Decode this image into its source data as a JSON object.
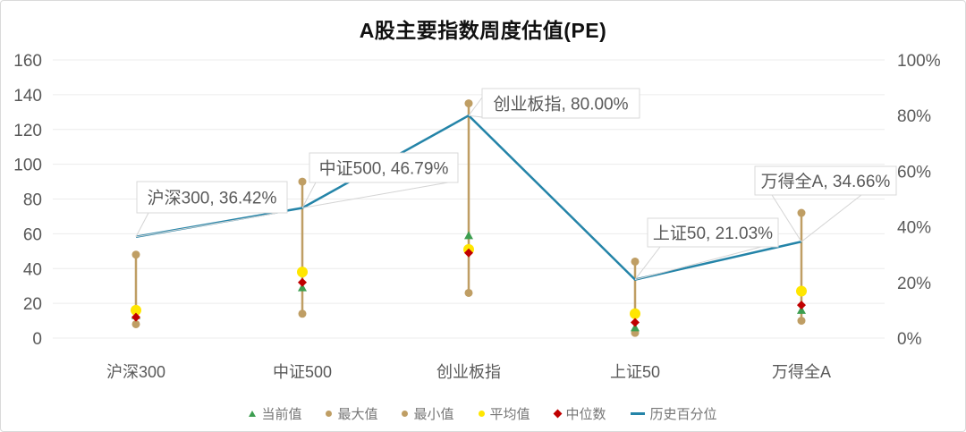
{
  "title": "A股主要指数周度估值(PE)",
  "colors": {
    "percentile_line": "#2484A8",
    "range": "#BF9E64",
    "average": "#FFE600",
    "median": "#C00000",
    "current": "#3D9E50",
    "axis_text": "#595959",
    "grid": "#ECECEC",
    "label_text": "#595959",
    "label_border": "#D9D9D9",
    "leader": "#D4D4D4",
    "legend_text": "#767676"
  },
  "chart_data": {
    "type": "line",
    "subtype": "range-markers-with-percentile-line",
    "title": "A股主要指数周度估值(PE)",
    "categories": [
      "沪深300",
      "中证500",
      "创业板指",
      "上证50",
      "万得全A"
    ],
    "left_axis": {
      "min": 0,
      "max": 160,
      "step": 20,
      "tick_values": [
        160,
        140,
        120,
        100,
        80,
        60,
        40,
        20,
        0
      ]
    },
    "right_axis": {
      "min": 0,
      "max": 100,
      "step": 20,
      "tick_values": [
        100,
        80,
        60,
        40,
        20,
        0
      ],
      "tick_labels": [
        "100%",
        "80%",
        "60%",
        "40%",
        "20%",
        "0%"
      ]
    },
    "grid": true,
    "legend_position": "bottom",
    "series": [
      {
        "key": "current",
        "name": "当前值",
        "marker": "triangle",
        "color": "#3D9E50",
        "axis": "left",
        "values": [
          13,
          29,
          59,
          6,
          16
        ]
      },
      {
        "key": "max",
        "name": "最大值",
        "marker": "circle",
        "color": "#BF9E64",
        "axis": "left",
        "values": [
          48,
          90,
          135,
          44,
          72
        ]
      },
      {
        "key": "min",
        "name": "最小值",
        "marker": "circle",
        "color": "#BF9E64",
        "axis": "left",
        "values": [
          8,
          14,
          26,
          3,
          10
        ]
      },
      {
        "key": "average",
        "name": "平均值",
        "marker": "circle",
        "color": "#FFE600",
        "axis": "left",
        "values": [
          16,
          38,
          51,
          14,
          27
        ]
      },
      {
        "key": "median",
        "name": "中位数",
        "marker": "diamond",
        "color": "#C00000",
        "axis": "left",
        "values": [
          12,
          32,
          49,
          9,
          19
        ]
      },
      {
        "key": "percentile",
        "name": "历史百分位",
        "marker": "line",
        "color": "#2484A8",
        "axis": "right",
        "values": [
          36.42,
          46.79,
          80.0,
          21.03,
          34.66
        ]
      }
    ],
    "data_labels": [
      {
        "text": "沪深300, 36.42%"
      },
      {
        "text": "中证500, 46.79%"
      },
      {
        "text": "创业板指, 80.00%"
      },
      {
        "text": "上证50, 21.03%"
      },
      {
        "text": "万得全A, 34.66%"
      }
    ]
  }
}
